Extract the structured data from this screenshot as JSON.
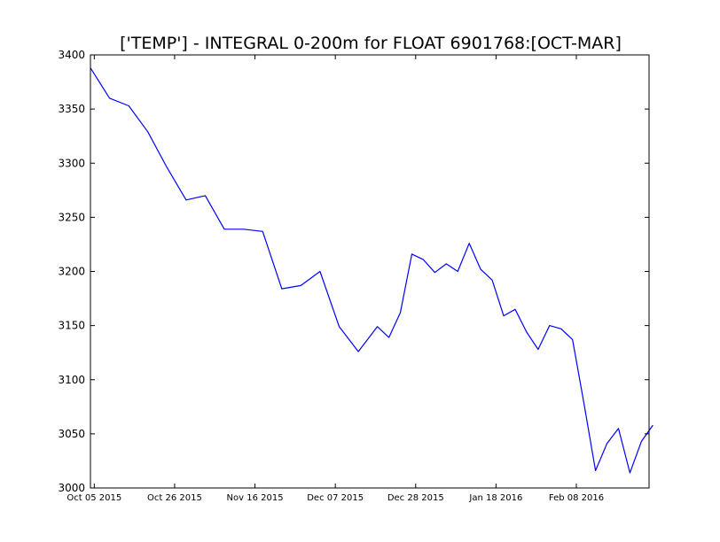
{
  "chart_data": {
    "type": "line",
    "title": "['TEMP'] - INTEGRAL 0-200m for FLOAT 6901768:[OCT-MAR]",
    "xlabel": "",
    "ylabel": "",
    "ylim": [
      3000,
      3400
    ],
    "yticks": [
      3000,
      3050,
      3100,
      3150,
      3200,
      3250,
      3300,
      3350,
      3400
    ],
    "xlim": [
      "2015-10-04",
      "2016-02-27"
    ],
    "xticks": [
      {
        "date": "2015-10-05",
        "label": "Oct 05 2015"
      },
      {
        "date": "2015-10-26",
        "label": "Oct 26 2015"
      },
      {
        "date": "2015-11-16",
        "label": "Nov 16 2015"
      },
      {
        "date": "2015-12-07",
        "label": "Dec 07 2015"
      },
      {
        "date": "2015-12-28",
        "label": "Dec 28 2015"
      },
      {
        "date": "2016-01-18",
        "label": "Jan 18 2016"
      },
      {
        "date": "2016-02-08",
        "label": "Feb 08 2016"
      }
    ],
    "grid": false,
    "legend": "none",
    "series": [
      {
        "color": "#0000ff",
        "points": [
          {
            "x": "2015-10-04",
            "y": 3388
          },
          {
            "x": "2015-10-09",
            "y": 3360
          },
          {
            "x": "2015-10-14",
            "y": 3353
          },
          {
            "x": "2015-10-19",
            "y": 3329
          },
          {
            "x": "2015-10-24",
            "y": 3296
          },
          {
            "x": "2015-10-29",
            "y": 3266
          },
          {
            "x": "2015-11-03",
            "y": 3270
          },
          {
            "x": "2015-11-08",
            "y": 3239
          },
          {
            "x": "2015-11-13",
            "y": 3239
          },
          {
            "x": "2015-11-18",
            "y": 3237
          },
          {
            "x": "2015-11-23",
            "y": 3184
          },
          {
            "x": "2015-11-28",
            "y": 3187
          },
          {
            "x": "2015-12-03",
            "y": 3200
          },
          {
            "x": "2015-12-08",
            "y": 3149
          },
          {
            "x": "2015-12-13",
            "y": 3126
          },
          {
            "x": "2015-12-18",
            "y": 3149
          },
          {
            "x": "2015-12-21",
            "y": 3139
          },
          {
            "x": "2015-12-24",
            "y": 3162
          },
          {
            "x": "2015-12-27",
            "y": 3216
          },
          {
            "x": "2015-12-30",
            "y": 3211
          },
          {
            "x": "2016-01-02",
            "y": 3199
          },
          {
            "x": "2016-01-05",
            "y": 3207
          },
          {
            "x": "2016-01-08",
            "y": 3200
          },
          {
            "x": "2016-01-11",
            "y": 3226
          },
          {
            "x": "2016-01-14",
            "y": 3202
          },
          {
            "x": "2016-01-17",
            "y": 3192
          },
          {
            "x": "2016-01-20",
            "y": 3159
          },
          {
            "x": "2016-01-23",
            "y": 3165
          },
          {
            "x": "2016-01-26",
            "y": 3144
          },
          {
            "x": "2016-01-29",
            "y": 3128
          },
          {
            "x": "2016-02-01",
            "y": 3150
          },
          {
            "x": "2016-02-04",
            "y": 3147
          },
          {
            "x": "2016-02-07",
            "y": 3137
          },
          {
            "x": "2016-02-10",
            "y": 3078
          },
          {
            "x": "2016-02-13",
            "y": 3016
          },
          {
            "x": "2016-02-16",
            "y": 3041
          },
          {
            "x": "2016-02-19",
            "y": 3055
          },
          {
            "x": "2016-02-22",
            "y": 3014
          },
          {
            "x": "2016-02-25",
            "y": 3043
          },
          {
            "x": "2016-02-28",
            "y": 3058
          }
        ]
      }
    ]
  }
}
